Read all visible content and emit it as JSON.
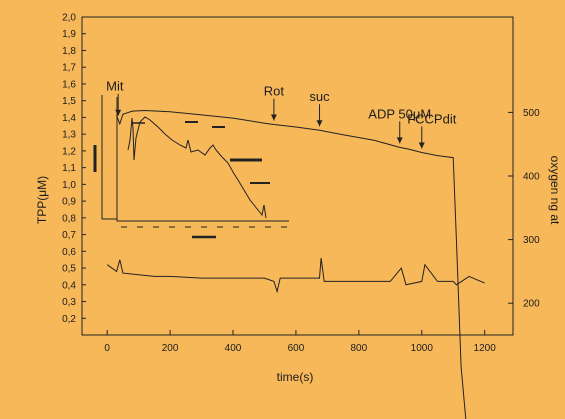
{
  "chart_data": {
    "type": "line",
    "xlabel": "time(s)",
    "ylabel_left": "TPP(μM)",
    "ylabel_right": "oxygen ng at",
    "xlim": [
      -80,
      1290
    ],
    "ylim_left": [
      0.1,
      2.0
    ],
    "ylim_right": [
      150,
      650
    ],
    "x_ticks": [
      0,
      200,
      400,
      600,
      800,
      1000,
      1200
    ],
    "y_ticks_left": [
      0.2,
      0.3,
      0.4,
      0.5,
      0.6,
      0.7,
      0.8,
      0.9,
      1.0,
      1.1,
      1.2,
      1.3,
      1.4,
      1.5,
      1.6,
      1.7,
      1.8,
      1.9,
      2.0
    ],
    "y_ticks_right": [
      200,
      300,
      400,
      500
    ],
    "annotations": [
      {
        "label": "Mit",
        "x": 35
      },
      {
        "label": "Rot",
        "x": 530
      },
      {
        "label": "suc",
        "x": 675
      },
      {
        "label": "ADP 50μM",
        "x": 930
      },
      {
        "label": "FCCPdit",
        "x": 1000
      }
    ],
    "series": [
      {
        "axis": "right",
        "x": [
          30,
          40,
          50,
          80,
          120,
          200,
          300,
          400,
          500,
          530,
          600,
          675,
          750,
          850,
          930,
          960,
          1000,
          1050,
          1100,
          1110,
          1125,
          1140
        ],
        "values": [
          495,
          482,
          497,
          502,
          503,
          501,
          496,
          491,
          483,
          481,
          477,
          472,
          465,
          456,
          445,
          442,
          437,
          432,
          429,
          300,
          100,
          0
        ]
      },
      {
        "axis": "left",
        "x": [
          0,
          30,
          40,
          50,
          100,
          150,
          200,
          300,
          400,
          500,
          530,
          540,
          550,
          600,
          675,
          680,
          690,
          700,
          800,
          900,
          935,
          950,
          1000,
          1010,
          1050,
          1100,
          1110,
          1150,
          1200
        ],
        "values": [
          0.52,
          0.48,
          0.55,
          0.47,
          0.46,
          0.45,
          0.45,
          0.44,
          0.44,
          0.44,
          0.42,
          0.36,
          0.44,
          0.44,
          0.44,
          0.56,
          0.42,
          0.42,
          0.42,
          0.42,
          0.5,
          0.4,
          0.42,
          0.52,
          0.42,
          0.42,
          0.4,
          0.45,
          0.41
        ]
      }
    ]
  }
}
